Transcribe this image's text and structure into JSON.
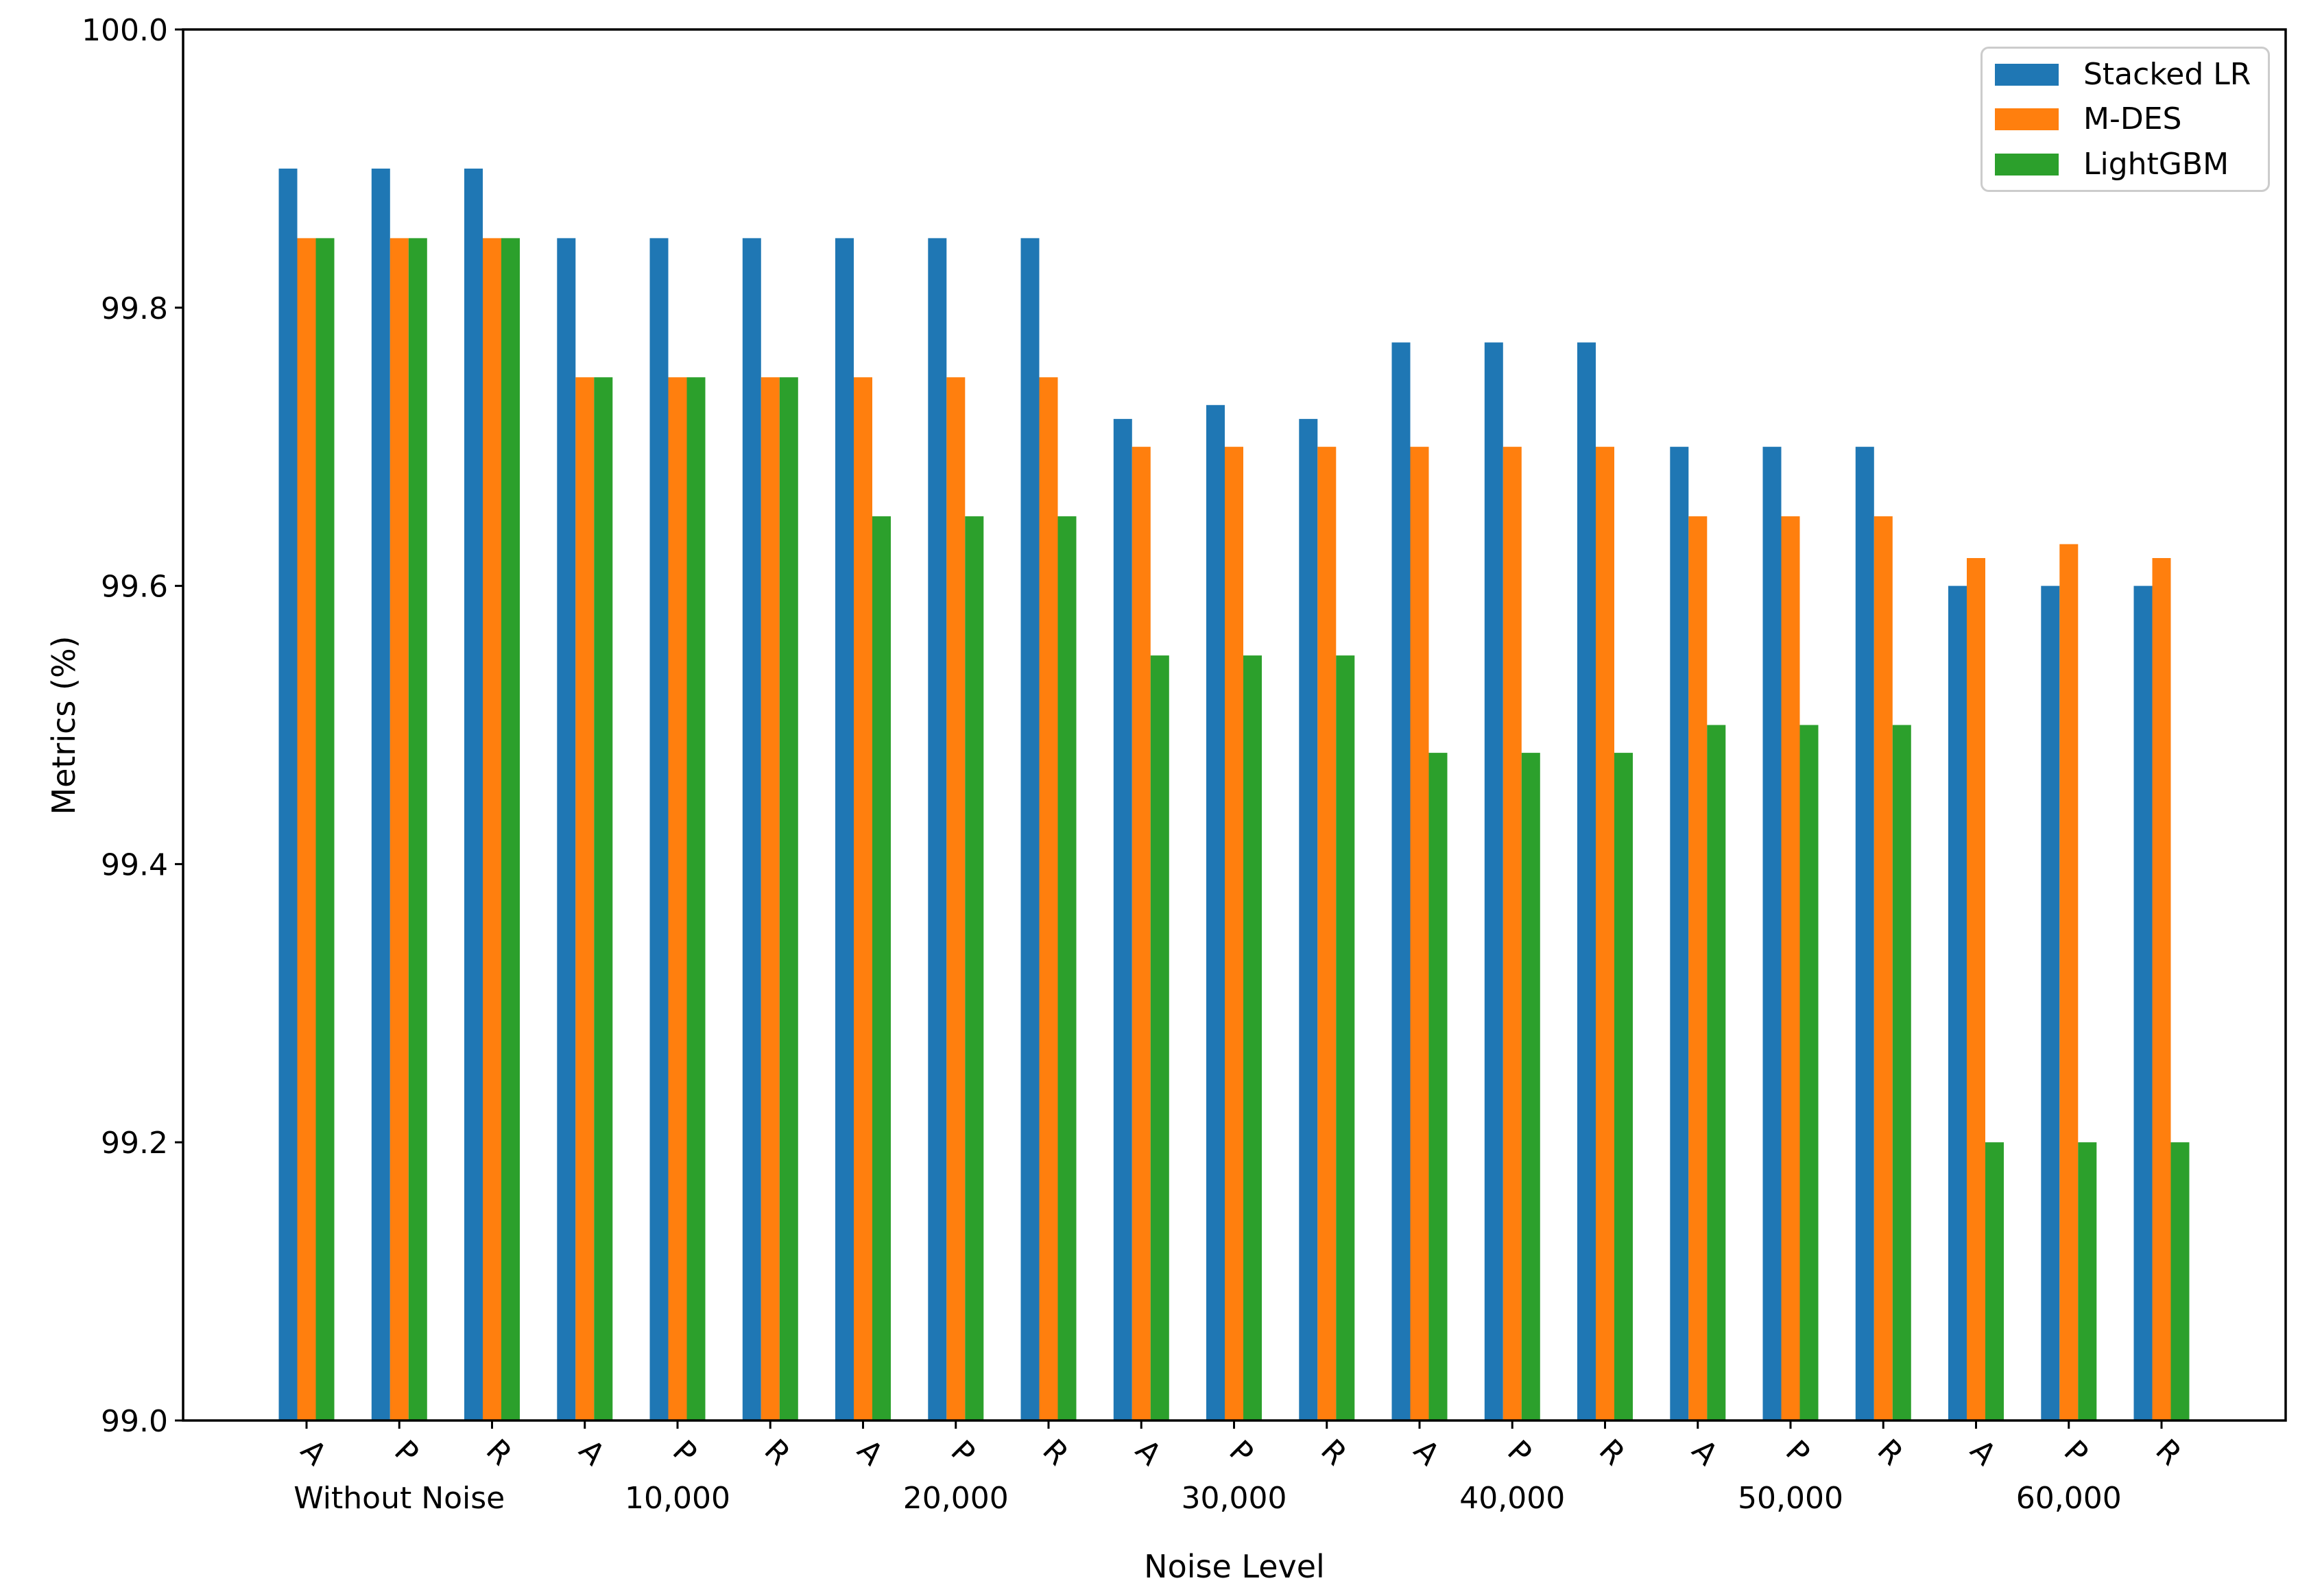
{
  "chart_data": {
    "type": "bar",
    "title": "",
    "xlabel": "Noise Level",
    "ylabel": "Metrics (%)",
    "ylim": [
      99.0,
      100.0
    ],
    "yticks": [
      99.0,
      99.2,
      99.4,
      99.6,
      99.8,
      100.0
    ],
    "ytick_labels": [
      "99.0",
      "99.2",
      "99.4",
      "99.6",
      "99.8",
      "100.0"
    ],
    "group_labels": [
      "Without Noise",
      "10,000",
      "20,000",
      "30,000",
      "40,000",
      "50,000",
      "60,000"
    ],
    "subgroup_labels": [
      "A",
      "P",
      "R"
    ],
    "grid": false,
    "legend_position": "upper right",
    "series": [
      {
        "name": "Stacked LR",
        "color": "#1f77b4",
        "values": [
          [
            99.9,
            99.9,
            99.9
          ],
          [
            99.85,
            99.85,
            99.85
          ],
          [
            99.85,
            99.85,
            99.85
          ],
          [
            99.72,
            99.73,
            99.72
          ],
          [
            99.775,
            99.775,
            99.775
          ],
          [
            99.7,
            99.7,
            99.7
          ],
          [
            99.6,
            99.6,
            99.6
          ]
        ]
      },
      {
        "name": "M-DES",
        "color": "#ff7f0e",
        "values": [
          [
            99.85,
            99.85,
            99.85
          ],
          [
            99.75,
            99.75,
            99.75
          ],
          [
            99.75,
            99.75,
            99.75
          ],
          [
            99.7,
            99.7,
            99.7
          ],
          [
            99.7,
            99.7,
            99.7
          ],
          [
            99.65,
            99.65,
            99.65
          ],
          [
            99.62,
            99.63,
            99.62
          ]
        ]
      },
      {
        "name": "LightGBM",
        "color": "#2ca02c",
        "values": [
          [
            99.85,
            99.85,
            99.85
          ],
          [
            99.75,
            99.75,
            99.75
          ],
          [
            99.65,
            99.65,
            99.65
          ],
          [
            99.55,
            99.55,
            99.55
          ],
          [
            99.48,
            99.48,
            99.48
          ],
          [
            99.5,
            99.5,
            99.5
          ],
          [
            99.2,
            99.2,
            99.2
          ]
        ]
      }
    ]
  }
}
